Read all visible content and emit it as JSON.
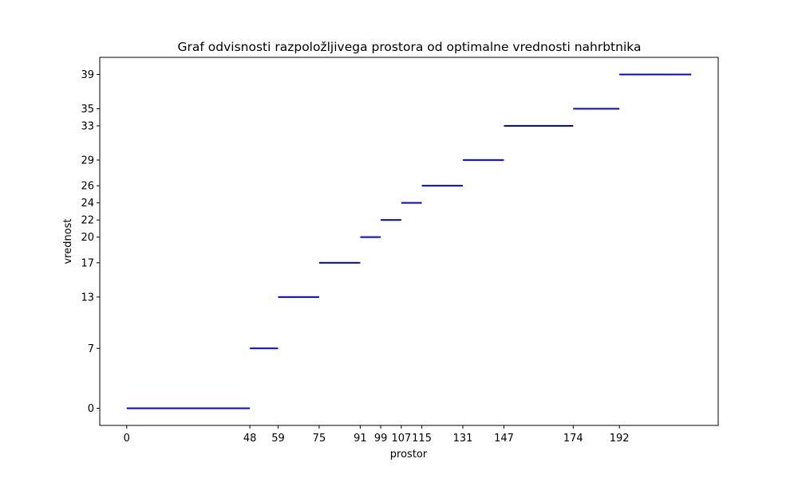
{
  "chart_data": {
    "type": "line",
    "title": "Graf odvisnosti razpoložljivega prostora od optimalne vrednosti nahrbtnika",
    "xlabel": "prostor",
    "ylabel": "vrednost",
    "x_ticks": [
      0,
      48,
      59,
      75,
      91,
      99,
      107,
      115,
      131,
      147,
      174,
      192
    ],
    "y_ticks": [
      0,
      7,
      13,
      17,
      20,
      22,
      24,
      26,
      29,
      33,
      35,
      39
    ],
    "xlim": [
      -10.5,
      230.5
    ],
    "ylim": [
      -2,
      41
    ],
    "grid": false,
    "line_color": "#0000ff",
    "segments": [
      {
        "x_start": 0,
        "x_end": 48,
        "y": 0
      },
      {
        "x_start": 48,
        "x_end": 59,
        "y": 7
      },
      {
        "x_start": 59,
        "x_end": 75,
        "y": 13
      },
      {
        "x_start": 75,
        "x_end": 91,
        "y": 17
      },
      {
        "x_start": 91,
        "x_end": 99,
        "y": 20
      },
      {
        "x_start": 99,
        "x_end": 107,
        "y": 22
      },
      {
        "x_start": 107,
        "x_end": 115,
        "y": 24
      },
      {
        "x_start": 115,
        "x_end": 131,
        "y": 26
      },
      {
        "x_start": 131,
        "x_end": 147,
        "y": 29
      },
      {
        "x_start": 147,
        "x_end": 174,
        "y": 33
      },
      {
        "x_start": 174,
        "x_end": 192,
        "y": 35
      },
      {
        "x_start": 192,
        "x_end": 220,
        "y": 39
      }
    ]
  }
}
